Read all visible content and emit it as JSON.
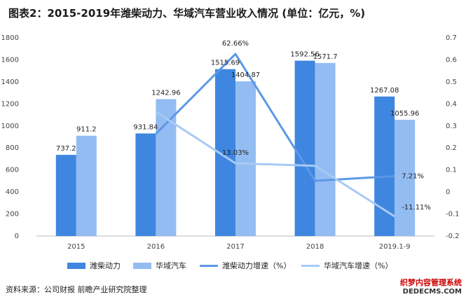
{
  "title": "图表2：2015-2019年潍柴动力、华域汽车营业收入情况 (单位：亿元，%)",
  "source": "资料来源：公司财报 前瞻产业研究院整理",
  "brand": {
    "line1": "织梦内容管理系统",
    "line2": "DEDECMS.COM"
  },
  "colors": {
    "weichai_bar": "#3f86e0",
    "huayu_bar": "#93bcf2",
    "weichai_line": "#5c98e6",
    "huayu_line": "#a7caf4"
  },
  "chart_data": {
    "type": "bar",
    "categories": [
      "2015",
      "2016",
      "2017",
      "2018",
      "2019.1-9"
    ],
    "series": [
      {
        "name": "潍柴动力",
        "type": "bar",
        "axis": "left",
        "values": [
          737.2,
          931.84,
          1515.69,
          1592.56,
          1267.08
        ],
        "labels": [
          "737.2",
          "931.84",
          "1515.69",
          "1592.56",
          "1267.08"
        ]
      },
      {
        "name": "华域汽车",
        "type": "bar",
        "axis": "left",
        "values": [
          911.2,
          1242.96,
          1404.87,
          1571.7,
          1055.96
        ],
        "labels": [
          "911.2",
          "1242.96",
          "1404.87",
          "1571.7",
          "1055.96"
        ]
      },
      {
        "name": "潍柴动力增速（%）",
        "type": "line",
        "axis": "right",
        "values": [
          null,
          0.264,
          0.6266,
          0.051,
          0.0721
        ],
        "labels": [
          "",
          "",
          "62.66%",
          "",
          "7.21%"
        ]
      },
      {
        "name": "华域汽车增速（%）",
        "type": "line",
        "axis": "right",
        "values": [
          null,
          0.364,
          0.1303,
          0.119,
          -0.1111
        ],
        "labels": [
          "",
          "",
          "13.03%",
          "",
          "-11.11%"
        ]
      }
    ],
    "y_left": {
      "min": 0,
      "max": 1800,
      "ticks": [
        "0",
        "200",
        "400",
        "600",
        "800",
        "1000",
        "1200",
        "1400",
        "1600",
        "1800"
      ]
    },
    "y_right": {
      "min": -0.2,
      "max": 0.7,
      "ticks": [
        "-0.2",
        "-0.1",
        "0",
        "0.1",
        "0.2",
        "0.3",
        "0.4",
        "0.5",
        "0.6",
        "0.7"
      ]
    },
    "grid": false,
    "legend": "bottom"
  }
}
